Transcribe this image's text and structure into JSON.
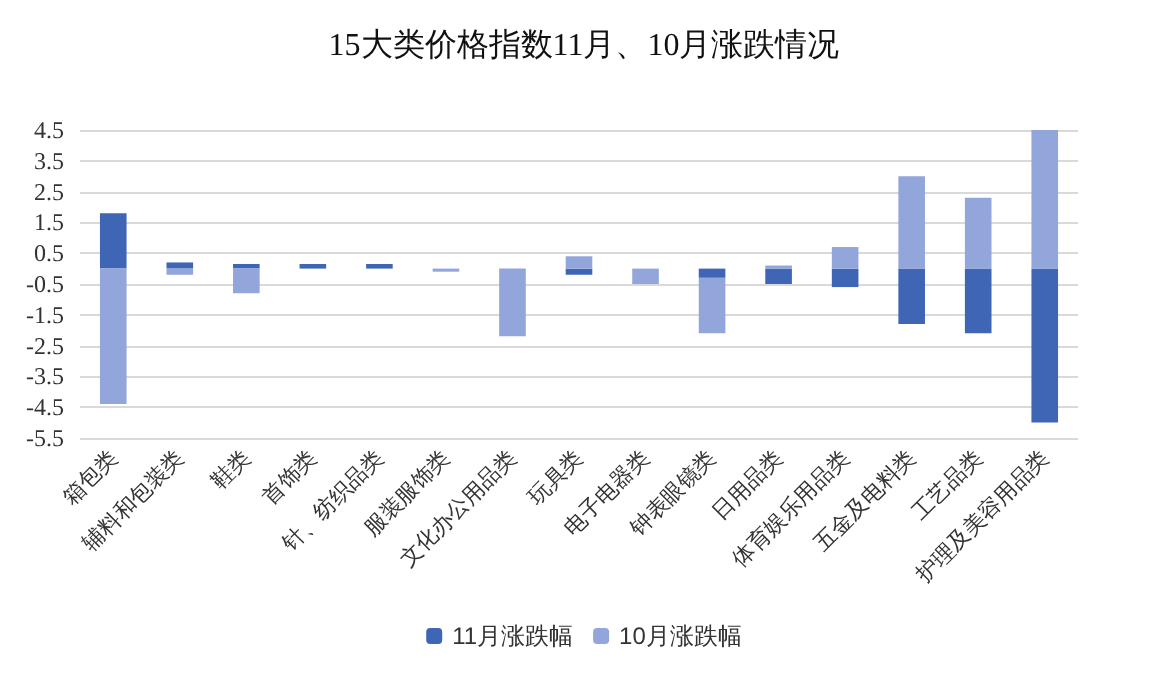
{
  "chart_data": {
    "type": "bar",
    "title": "15大类价格指数11月、10月涨跌情况",
    "categories": [
      "箱包类",
      "辅料和包装类",
      "鞋类",
      "首饰类",
      "针、纺织品类",
      "服装服饰类",
      "文化办公用品类",
      "玩具类",
      "电子电器类",
      "钟表眼镜类",
      "日用品类",
      "体育娱乐用品类",
      "五金及电料类",
      "工艺品类",
      "护理及美容用品类"
    ],
    "series": [
      {
        "name": "11月涨跌幅",
        "color": "#3f66b5",
        "values": [
          1.8,
          0.2,
          0.15,
          0.15,
          0.15,
          null,
          null,
          -0.2,
          null,
          -0.3,
          -0.5,
          -0.6,
          -1.8,
          -2.1,
          -5.0
        ]
      },
      {
        "name": "10月涨跌幅",
        "color": "#93a6db",
        "values": [
          -4.4,
          -0.2,
          -0.8,
          null,
          null,
          -0.1,
          -2.2,
          0.4,
          -0.5,
          -1.8,
          0.1,
          0.7,
          3.0,
          2.3,
          4.5
        ]
      }
    ],
    "stacked": true,
    "ylim": [
      -5.5,
      4.5
    ],
    "yticks": [
      -5.5,
      -4.5,
      -3.5,
      -2.5,
      -1.5,
      -0.5,
      0.5,
      1.5,
      2.5,
      3.5,
      4.5
    ],
    "grid": "y",
    "legend": "bottom"
  }
}
